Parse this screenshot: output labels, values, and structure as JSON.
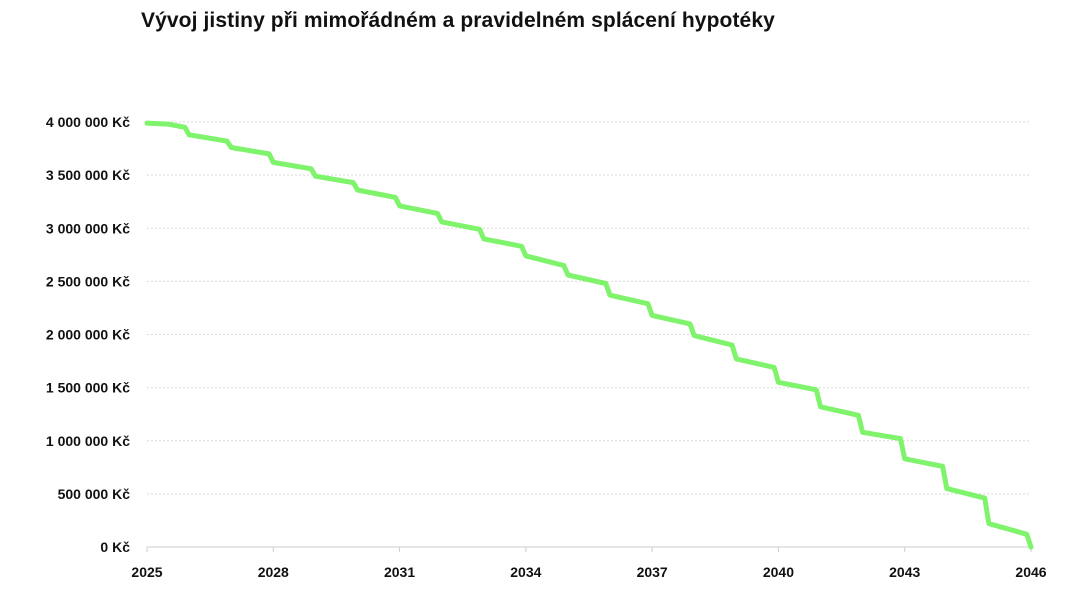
{
  "chart_data": {
    "type": "line",
    "title": "Vývoj jistiny při mimořádném a pravidelném splácení hypotéky",
    "xlabel": "",
    "ylabel": "",
    "x_ticks": [
      "2025",
      "2028",
      "2031",
      "2034",
      "2037",
      "2040",
      "2043",
      "2046"
    ],
    "y_ticks": [
      "0 Kč",
      "500 000 Kč",
      "1 000 000 Kč",
      "1 500 000 Kč",
      "2 000 000 Kč",
      "2 500 000 Kč",
      "3 000 000 Kč",
      "3 500 000 Kč",
      "4 000 000 Kč"
    ],
    "xlim": [
      2025,
      2046
    ],
    "ylim": [
      0,
      4000000
    ],
    "grid": "horizontal dashed",
    "line_color": "#7ff36b",
    "series": [
      {
        "x": [
          2025,
          2025.5,
          2025.9,
          2026,
          2026.9,
          2027,
          2027.9,
          2028,
          2028.9,
          2029,
          2029.9,
          2030,
          2030.9,
          2031,
          2031.9,
          2032,
          2032.9,
          2033,
          2033.9,
          2034,
          2034.9,
          2035,
          2035.9,
          2036,
          2036.9,
          2037,
          2037.9,
          2038,
          2038.9,
          2039,
          2039.9,
          2040,
          2040.9,
          2041,
          2041.9,
          2042,
          2042.9,
          2043,
          2043.9,
          2044,
          2044.9,
          2045,
          2045.9,
          2046
        ],
        "y": [
          3990000,
          3980000,
          3950000,
          3880000,
          3820000,
          3760000,
          3700000,
          3620000,
          3560000,
          3490000,
          3430000,
          3360000,
          3290000,
          3210000,
          3140000,
          3060000,
          2990000,
          2900000,
          2830000,
          2740000,
          2650000,
          2560000,
          2480000,
          2370000,
          2290000,
          2180000,
          2100000,
          1990000,
          1900000,
          1770000,
          1690000,
          1550000,
          1480000,
          1320000,
          1240000,
          1080000,
          1020000,
          830000,
          760000,
          550000,
          460000,
          220000,
          120000,
          0
        ]
      }
    ]
  }
}
